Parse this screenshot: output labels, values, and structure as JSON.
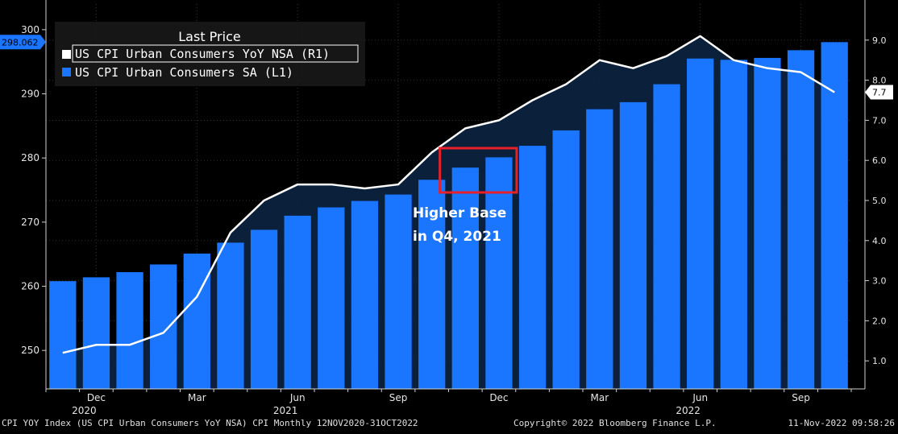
{
  "chart_data": {
    "type": "bar",
    "left_axis": {
      "ticks": [
        250,
        260,
        270,
        280,
        290,
        300
      ],
      "range": [
        244,
        304
      ],
      "last_value_label": "298.062",
      "last_value": 298.062
    },
    "right_axis": {
      "ticks": [
        "1.0",
        "2.0",
        "3.0",
        "4.0",
        "5.0",
        "6.0",
        "7.0",
        "8.0",
        "9.0"
      ],
      "range": [
        0.3,
        9.9
      ],
      "last_value_label": "7.7",
      "last_value": 7.7
    },
    "x_axis": {
      "month_labels": [
        {
          "label": "Dec",
          "index": 1
        },
        {
          "label": "Mar",
          "index": 4
        },
        {
          "label": "Jun",
          "index": 7
        },
        {
          "label": "Sep",
          "index": 10
        },
        {
          "label": "Dec",
          "index": 13
        },
        {
          "label": "Mar",
          "index": 16
        },
        {
          "label": "Jun",
          "index": 19
        },
        {
          "label": "Sep",
          "index": 22
        }
      ],
      "year_labels": [
        {
          "label": "2020",
          "index": 1
        },
        {
          "label": "2021",
          "index": 7
        },
        {
          "label": "2022",
          "index": 19
        }
      ]
    },
    "legend": {
      "title": "Last Price",
      "placement": "top-left",
      "entries": [
        {
          "name": "US CPI Urban Consumers YoY NSA  (R1)",
          "color": "#ffffff"
        },
        {
          "name": "US CPI Urban Consumers SA  (L1)",
          "color": "#1a75ff"
        }
      ]
    },
    "series": [
      {
        "name": "US CPI Urban Consumers SA  (L1)",
        "axis": "left",
        "kind": "bar",
        "color": "#1a75ff",
        "values": [
          260.8,
          261.4,
          262.2,
          263.4,
          265.1,
          266.8,
          268.8,
          271.0,
          272.3,
          273.3,
          274.3,
          276.6,
          278.5,
          280.1,
          281.9,
          284.3,
          287.6,
          288.7,
          291.5,
          295.5,
          295.3,
          295.6,
          296.8,
          298.062
        ]
      },
      {
        "name": "US CPI Urban Consumers YoY NSA  (R1)",
        "axis": "right",
        "kind": "line",
        "color": "#ffffff",
        "values": [
          1.2,
          1.4,
          1.4,
          1.7,
          2.6,
          4.2,
          5.0,
          5.4,
          5.4,
          5.3,
          5.4,
          6.2,
          6.8,
          7.0,
          7.5,
          7.9,
          8.5,
          8.3,
          8.6,
          9.1,
          8.5,
          8.3,
          8.2,
          7.7
        ]
      }
    ],
    "annotation": {
      "line1": "Higher Base",
      "line2": "in Q4, 2021",
      "highlight_start_index": 11,
      "highlight_end_index": 13,
      "box_color": "#e8202a"
    }
  },
  "footer": {
    "left": "CPI YOY Index (US CPI Urban Consumers YoY NSA) CPI  Monthly 12NOV2020-31OCT2022",
    "center": "Copyright© 2022 Bloomberg Finance L.P.",
    "right": "11-Nov-2022 09:58:26"
  }
}
